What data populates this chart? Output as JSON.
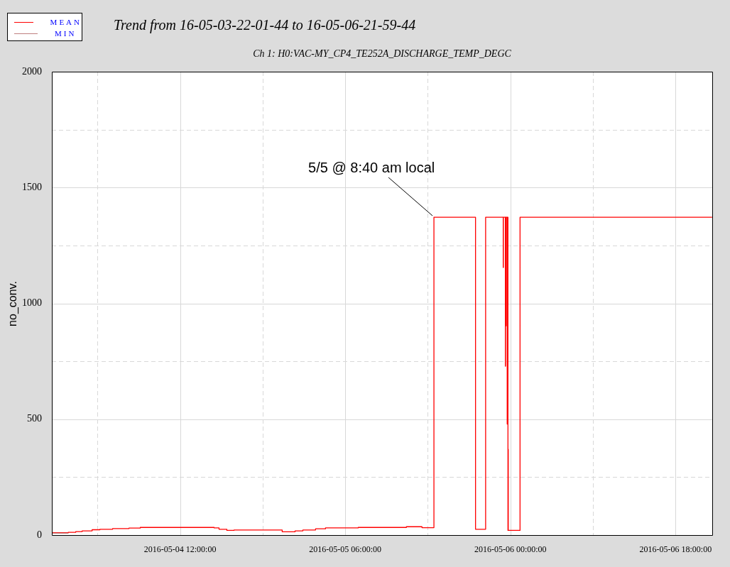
{
  "chart_data": {
    "type": "step",
    "title": "Trend from 16-05-03-22-01-44 to 16-05-06-21-59-44",
    "subtitle": "Ch 1: H0:VAC-MY_CP4_TE252A_DISCHARGE_TEMP_DEGC",
    "ylabel": "no_conv.",
    "xlim": [
      "2016-05-03T22:01:44",
      "2016-05-06T21:59:44"
    ],
    "xticks": [
      {
        "value": "2016-05-04T03:00",
        "label": null
      },
      {
        "value": "2016-05-04T12:00",
        "label": "2016-05-04 12:00:00"
      },
      {
        "value": "2016-05-04T21:00",
        "label": null
      },
      {
        "value": "2016-05-05T06:00",
        "label": "2016-05-05 06:00:00"
      },
      {
        "value": "2016-05-05T15:00",
        "label": null
      },
      {
        "value": "2016-05-06T00:00",
        "label": "2016-05-06 00:00:00"
      },
      {
        "value": "2016-05-06T09:00",
        "label": null
      },
      {
        "value": "2016-05-06T18:00",
        "label": "2016-05-06 18:00:00"
      }
    ],
    "ylim": [
      0,
      2000
    ],
    "yticks": [
      0,
      {
        "value": 250,
        "label": null
      },
      500,
      {
        "value": 750,
        "label": null
      },
      1000,
      {
        "value": 1250,
        "label": null
      },
      1500,
      {
        "value": 1750,
        "label": null
      },
      2000
    ],
    "grid": true,
    "legend": "top left",
    "marker": "none",
    "line_style": "solid",
    "annotations": [
      {
        "text": "5/5 @ 8:40 am local",
        "x": "2016-05-05T15:40",
        "y": 1372
      }
    ],
    "series": [
      {
        "name": "MEAN",
        "color": "#ff0000",
        "x": [
          "2016-05-03T22:02",
          "2016-05-03T23:49",
          "2016-05-04T00:38",
          "2016-05-04T01:20",
          "2016-05-04T02:25",
          "2016-05-04T03:16",
          "2016-05-04T04:39",
          "2016-05-04T06:26",
          "2016-05-04T07:40",
          "2016-05-04T12:23",
          "2016-05-04T15:43",
          "2016-05-04T16:15",
          "2016-05-04T17:06",
          "2016-05-04T17:53",
          "2016-05-04T19:49",
          "2016-05-04T20:58",
          "2016-05-04T23:08",
          "2016-05-05T00:18",
          "2016-05-05T00:32",
          "2016-05-05T01:23",
          "2016-05-05T02:46",
          "2016-05-05T03:51",
          "2016-05-05T07:25",
          "2016-05-05T12:40",
          "2016-05-05T14:22",
          "2016-05-05T15:40",
          "2016-05-05T20:12",
          "2016-05-05T21:18",
          "2016-05-05T23:13",
          "2016-05-05T23:14",
          "2016-05-05T23:27",
          "2016-05-05T23:28",
          "2016-05-05T23:31",
          "2016-05-05T23:32",
          "2016-05-05T23:39",
          "2016-05-05T23:40",
          "2016-05-05T23:44",
          "2016-05-05T23:45",
          "2016-05-05T23:46",
          "2016-05-06T01:03",
          "2016-05-06T21:59"
        ],
        "values": [
          10,
          12,
          15,
          18,
          23,
          25,
          28,
          30,
          33,
          33,
          31,
          25,
          20,
          22,
          22,
          22,
          14,
          14,
          18,
          22,
          27,
          31,
          33,
          36,
          32,
          1372,
          25,
          1372,
          1155,
          1372,
          729,
          1372,
          903,
          1372,
          479,
          1372,
          20,
          370,
          20,
          1372,
          1372
        ]
      },
      {
        "name": "MIN",
        "color": "#c08080",
        "x": [
          "2016-05-03T22:02",
          "2016-05-03T23:49"
        ],
        "values": [
          8,
          8
        ]
      }
    ]
  }
}
